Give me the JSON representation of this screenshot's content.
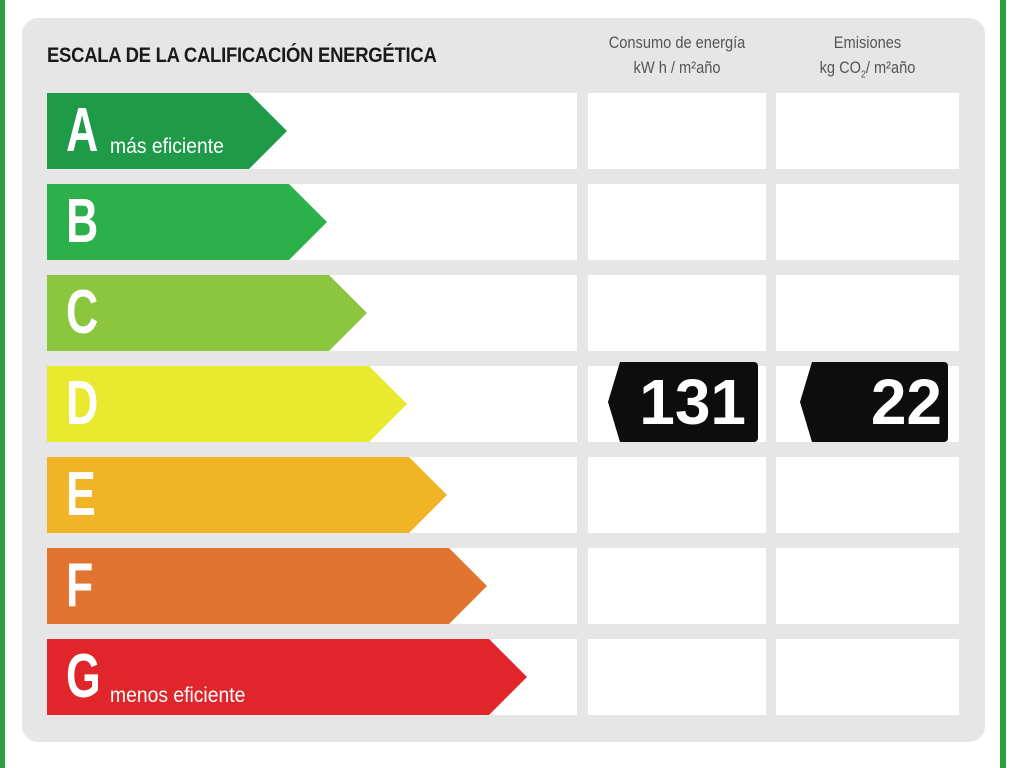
{
  "title": "ESCALA DE LA CALIFICACIÓN ENERGÉTICA",
  "columns": {
    "consumo": {
      "line1": "Consumo de energía",
      "line2": "kW h / m²año"
    },
    "emisiones": {
      "line1": "Emisiones",
      "line2_pre": "kg CO",
      "line2_sub": "2",
      "line2_post": "/ m²año"
    }
  },
  "ratings": [
    {
      "letter": "A",
      "color": "#1f9a49",
      "sublabel": "más eficiente"
    },
    {
      "letter": "B",
      "color": "#2bb04a",
      "sublabel": ""
    },
    {
      "letter": "C",
      "color": "#8cc63e",
      "sublabel": ""
    },
    {
      "letter": "D",
      "color": "#e9e92f",
      "sublabel": ""
    },
    {
      "letter": "E",
      "color": "#f0b426",
      "sublabel": ""
    },
    {
      "letter": "F",
      "color": "#e17530",
      "sublabel": ""
    },
    {
      "letter": "G",
      "color": "#e0262b",
      "sublabel": "menos eficiente"
    }
  ],
  "current": {
    "rating": "D",
    "consumo_value": "131",
    "emisiones_value": "22"
  }
}
